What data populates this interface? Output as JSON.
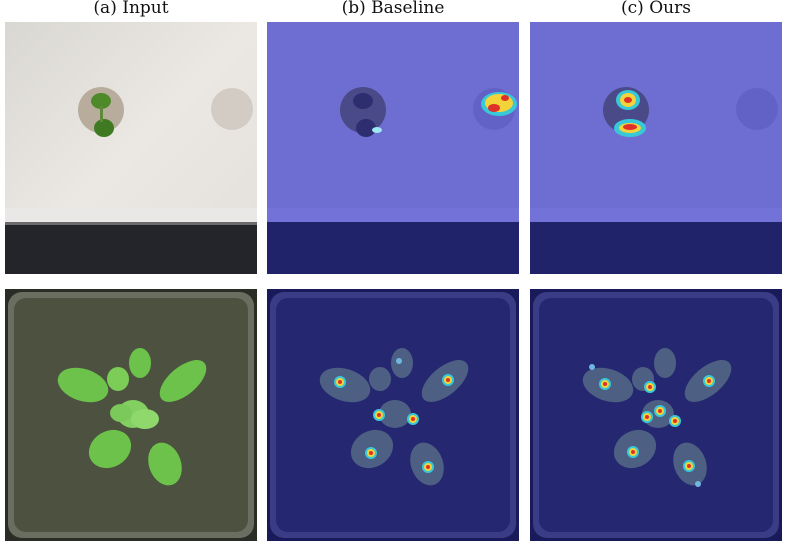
{
  "figure": {
    "columns": [
      {
        "label": "(a) Input"
      },
      {
        "label": "(b) Baseline"
      },
      {
        "label": "(c) Ours"
      }
    ]
  },
  "colors": {
    "wall": "#e6e2de",
    "floor_dark": "#1f2128",
    "tint_blue": "#4e50c8",
    "plant_green": "#6cc24a",
    "tray_dark": "#4c5140",
    "heat_hot": "#e0302a",
    "heat_warm": "#f2d43a",
    "heat_cool": "#38c8d8"
  }
}
